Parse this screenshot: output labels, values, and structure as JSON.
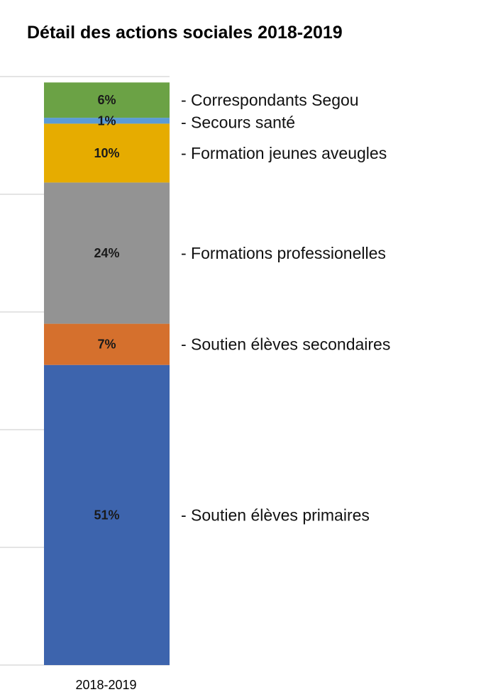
{
  "chart_data": {
    "type": "bar",
    "stacked": true,
    "title": "Détail des actions sociales 2018-2019",
    "categories": [
      "2018-2019"
    ],
    "ylim": [
      0,
      100
    ],
    "grid": true,
    "legend": "right",
    "series": [
      {
        "name": "- Soutien élèves primaires",
        "values": [
          51
        ],
        "label": "51%",
        "color": "#3d64ad"
      },
      {
        "name": "- Soutien élèves secondaires",
        "values": [
          7
        ],
        "label": "7%",
        "color": "#d5702d"
      },
      {
        "name": "- Formations professionelles",
        "values": [
          24
        ],
        "label": "24%",
        "color": "#939393"
      },
      {
        "name": "- Formation jeunes aveugles",
        "values": [
          10
        ],
        "label": "10%",
        "color": "#e6ac00"
      },
      {
        "name": "- Secours santé",
        "values": [
          1
        ],
        "label": "1%",
        "color": "#5b9bd5"
      },
      {
        "name": "- Correspondants Segou",
        "values": [
          6
        ],
        "label": "6%",
        "color": "#6ba245"
      }
    ]
  }
}
